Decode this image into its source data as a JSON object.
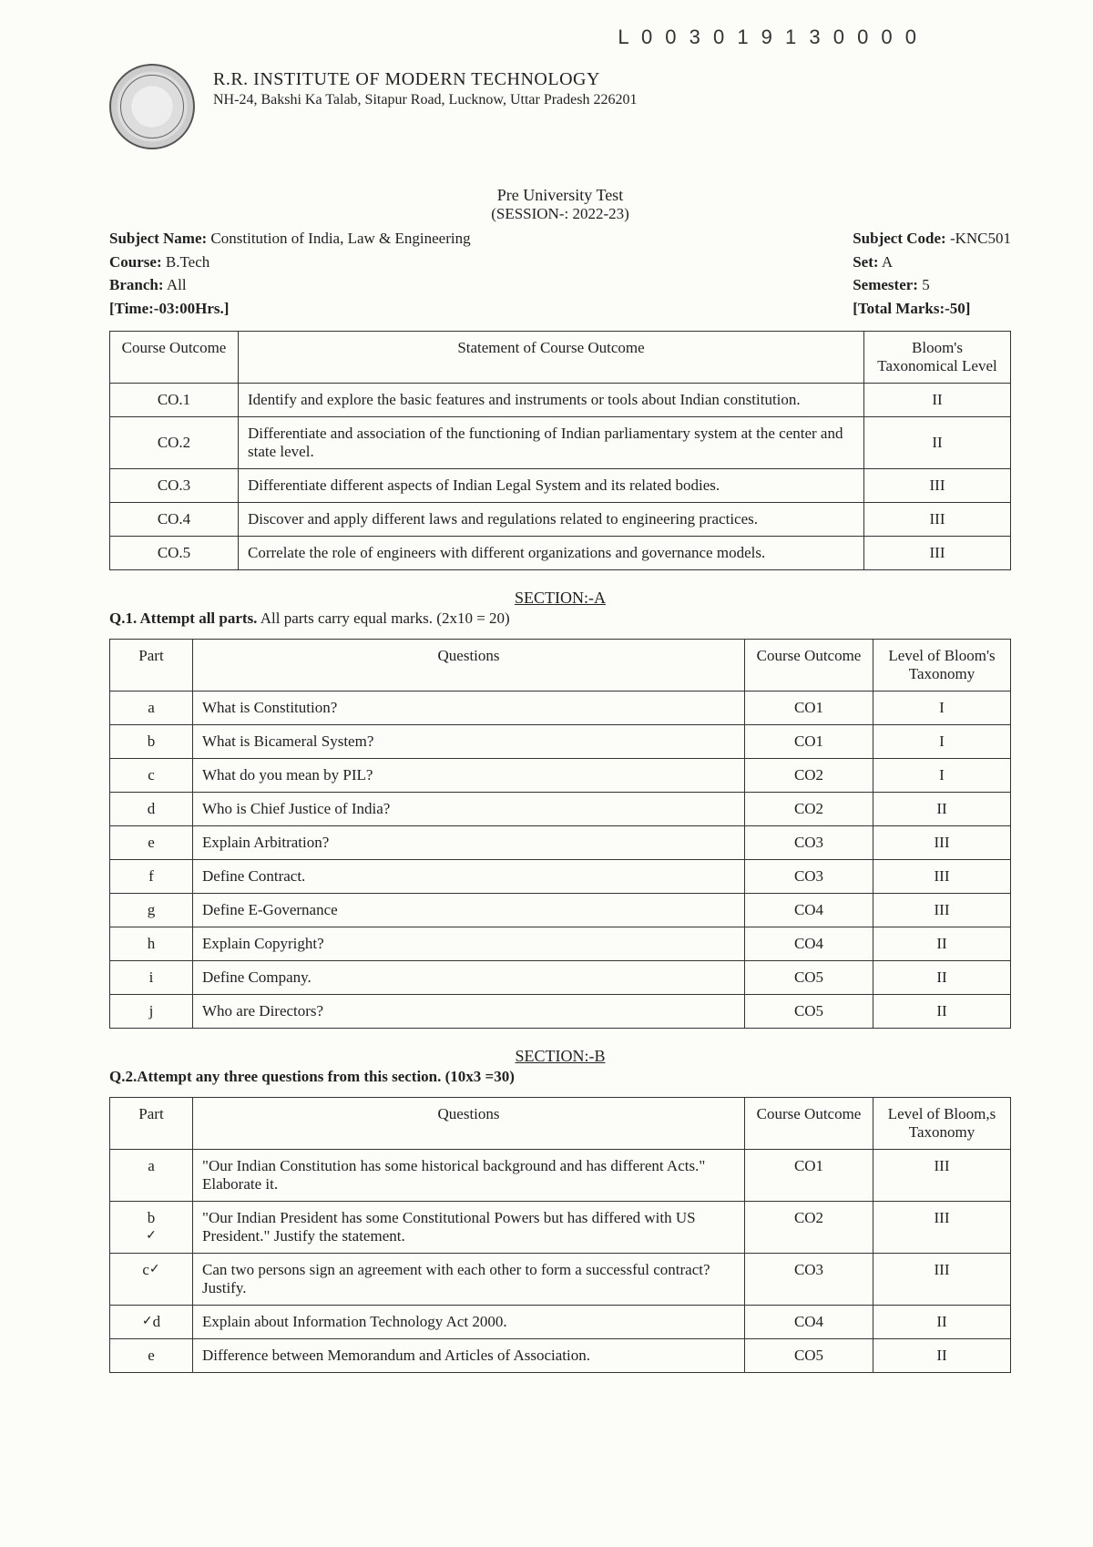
{
  "top_number": "L 0 0 3 0 1 9 1 3 0 0 0 0",
  "institute": {
    "name": "R.R. INSTITUTE OF MODERN TECHNOLOGY",
    "address": "NH-24, Bakshi Ka Talab, Sitapur Road, Lucknow, Uttar Pradesh 226201"
  },
  "exam": {
    "title": "Pre University Test",
    "session": "(SESSION-: 2022-23)"
  },
  "meta_left": {
    "subject_label": "Subject Name:",
    "subject_value": "Constitution of India, Law & Engineering",
    "course_label": "Course:",
    "course_value": "B.Tech",
    "branch_label": "Branch:",
    "branch_value": "All",
    "time_label": "[Time:-03:00Hrs.]"
  },
  "meta_right": {
    "code_label": "Subject Code:",
    "code_value": "-KNC501",
    "set_label": "Set:",
    "set_value": "A",
    "sem_label": "Semester:",
    "sem_value": "5",
    "marks_label": "[Total Marks:-50]"
  },
  "co_table": {
    "headers": [
      "Course Outcome",
      "Statement of Course Outcome",
      "Bloom's Taxonomical Level"
    ],
    "rows": [
      {
        "id": "CO.1",
        "statement": "Identify and explore the basic features and instruments or tools about Indian constitution.",
        "bloom": "II"
      },
      {
        "id": "CO.2",
        "statement": "Differentiate and association of the functioning of Indian parliamentary system at the center and state level.",
        "bloom": "II"
      },
      {
        "id": "CO.3",
        "statement": "Differentiate different aspects of Indian Legal System and its related bodies.",
        "bloom": "III"
      },
      {
        "id": "CO.4",
        "statement": "Discover and apply different laws and regulations related to engineering practices.",
        "bloom": "III"
      },
      {
        "id": "CO.5",
        "statement": "Correlate the role of engineers with different organizations and governance models.",
        "bloom": "III"
      }
    ]
  },
  "section_a": {
    "title": "SECTION:-A",
    "instr_bold": "Q.1. Attempt all parts.",
    "instr_rest": " All parts carry equal marks. (2x10 = 20)",
    "headers": [
      "Part",
      "Questions",
      "Course Outcome",
      "Level of Bloom's Taxonomy"
    ],
    "rows": [
      {
        "part": "a",
        "q": "What is Constitution?",
        "co": "CO1",
        "bloom": "I"
      },
      {
        "part": "b",
        "q": "What is Bicameral System?",
        "co": "CO1",
        "bloom": "I"
      },
      {
        "part": "c",
        "q": "What do you mean by PIL?",
        "co": "CO2",
        "bloom": "I"
      },
      {
        "part": "d",
        "q": "Who is Chief Justice of India?",
        "co": "CO2",
        "bloom": "II"
      },
      {
        "part": "e",
        "q": "Explain Arbitration?",
        "co": "CO3",
        "bloom": "III"
      },
      {
        "part": "f",
        "q": "Define Contract.",
        "co": "CO3",
        "bloom": "III"
      },
      {
        "part": "g",
        "q": "Define E-Governance",
        "co": "CO4",
        "bloom": "III"
      },
      {
        "part": "h",
        "q": "Explain Copyright?",
        "co": "CO4",
        "bloom": "II"
      },
      {
        "part": "i",
        "q": "Define Company.",
        "co": "CO5",
        "bloom": "II"
      },
      {
        "part": "j",
        "q": "Who are Directors?",
        "co": "CO5",
        "bloom": "II"
      }
    ]
  },
  "section_b": {
    "title": "SECTION:-B",
    "instr": "Q.2.Attempt any three questions from this section. (10x3 =30)",
    "headers": [
      "Part",
      "Questions",
      "Course Outcome",
      "Level of Bloom,s Taxonomy"
    ],
    "rows": [
      {
        "part": "a",
        "q": "\"Our Indian Constitution has some historical background and has different Acts.\" Elaborate it.",
        "co": "CO1",
        "bloom": "III"
      },
      {
        "part": "b",
        "mark": "✓",
        "q": "\"Our Indian President has some Constitutional Powers but has differed with US President.\" Justify the statement.",
        "co": "CO2",
        "bloom": "III"
      },
      {
        "part": "c",
        "mark": "✓",
        "q": "Can two persons sign an agreement with each other to form a successful contract? Justify.",
        "co": "CO3",
        "bloom": "III"
      },
      {
        "part": "d",
        "mark": "✓",
        "q": "Explain about Information Technology Act 2000.",
        "co": "CO4",
        "bloom": "II"
      },
      {
        "part": "e",
        "q": "Difference between Memorandum and Articles of Association.",
        "co": "CO5",
        "bloom": "II"
      }
    ]
  }
}
